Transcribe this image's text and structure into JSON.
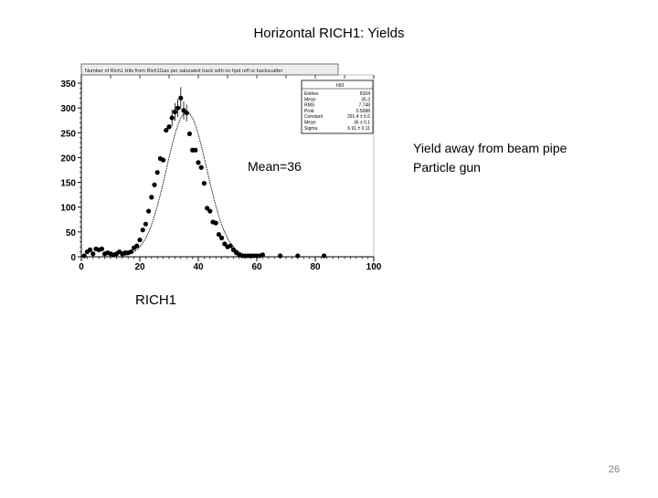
{
  "slide": {
    "title": "Horizontal RICH1: Yields",
    "annotation_lines": [
      "Yield away from beam pipe",
      "Particle gun"
    ],
    "mean_label": "Mean=36",
    "detector_label": "RICH1",
    "page_number": "26"
  },
  "chart_data": {
    "type": "scatter",
    "title": "Number of Rich1 Hits from Rich1Gas per saturated track with no hpd refl or backscatter",
    "xlabel": "",
    "ylabel": "",
    "xlim": [
      0,
      100
    ],
    "ylim": [
      0,
      350
    ],
    "xticks": [
      "0",
      "20",
      "40",
      "60",
      "80",
      "100"
    ],
    "yticks": [
      "0",
      "50",
      "100",
      "150",
      "200",
      "250",
      "300",
      "350"
    ],
    "stats_box": {
      "header": "h93",
      "rows": [
        {
          "label": "Entries",
          "value": "8104"
        },
        {
          "label": "Mean",
          "value": "35.3"
        },
        {
          "label": "RMS",
          "value": "7.748"
        },
        {
          "label": "Prob",
          "value": "0.5088"
        },
        {
          "label": "Constant",
          "value": "291.4 ± 6.5"
        },
        {
          "label": "Mean",
          "value": "36 ± 0.1"
        },
        {
          "label": "Sigma",
          "value": "6.91 ± 0.11"
        }
      ]
    },
    "series": [
      {
        "marker_color": "#000000",
        "points": [
          [
            1,
            2
          ],
          [
            2,
            10
          ],
          [
            3,
            14
          ],
          [
            4,
            6
          ],
          [
            5,
            16
          ],
          [
            6,
            14
          ],
          [
            7,
            16
          ],
          [
            8,
            6
          ],
          [
            9,
            8
          ],
          [
            10,
            6
          ],
          [
            11,
            4
          ],
          [
            12,
            6
          ],
          [
            13,
            10
          ],
          [
            14,
            6
          ],
          [
            15,
            8
          ],
          [
            16,
            8
          ],
          [
            17,
            10
          ],
          [
            18,
            18
          ],
          [
            19,
            22
          ],
          [
            20,
            34
          ],
          [
            21,
            54
          ],
          [
            22,
            66
          ],
          [
            23,
            92
          ],
          [
            24,
            120
          ],
          [
            25,
            145
          ],
          [
            26,
            170
          ],
          [
            27,
            198
          ],
          [
            28,
            195
          ],
          [
            29,
            255
          ],
          [
            30,
            262
          ],
          [
            31,
            280
          ],
          [
            32,
            292
          ],
          [
            33,
            300
          ],
          [
            34,
            320
          ],
          [
            35,
            295
          ],
          [
            36,
            290
          ],
          [
            37,
            248
          ],
          [
            38,
            215
          ],
          [
            39,
            215
          ],
          [
            40,
            190
          ],
          [
            41,
            180
          ],
          [
            42,
            148
          ],
          [
            43,
            98
          ],
          [
            44,
            92
          ],
          [
            45,
            70
          ],
          [
            46,
            68
          ],
          [
            47,
            45
          ],
          [
            48,
            38
          ],
          [
            49,
            26
          ],
          [
            50,
            20
          ],
          [
            51,
            22
          ],
          [
            52,
            14
          ],
          [
            53,
            8
          ],
          [
            54,
            4
          ],
          [
            55,
            2
          ],
          [
            56,
            2
          ],
          [
            57,
            2
          ],
          [
            58,
            2
          ],
          [
            59,
            2
          ],
          [
            60,
            2
          ],
          [
            61,
            2
          ],
          [
            62,
            4
          ],
          [
            68,
            2
          ],
          [
            74,
            2
          ],
          [
            83,
            2
          ]
        ],
        "error_bars": [
          [
            32,
            292,
            18
          ],
          [
            33,
            300,
            18
          ],
          [
            34,
            320,
            22
          ],
          [
            35,
            295,
            18
          ],
          [
            36,
            290,
            17
          ],
          [
            31,
            280,
            17
          ]
        ]
      }
    ],
    "fit": {
      "type": "gaussian",
      "constant": 291.4,
      "mean": 36,
      "sigma": 6.91,
      "color": "#000000"
    }
  }
}
